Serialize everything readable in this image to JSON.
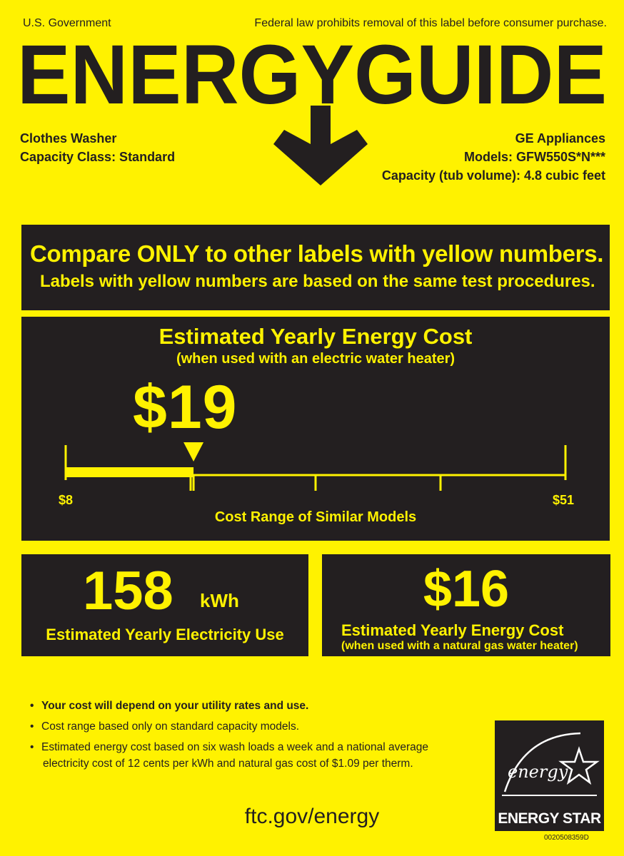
{
  "header": {
    "government": "U.S. Government",
    "federal_notice": "Federal law prohibits removal of this label before consumer purchase.",
    "brand_title": "ENERGYGUIDE"
  },
  "product": {
    "type": "Clothes Washer",
    "capacity_class": "Capacity Class: Standard",
    "manufacturer": "GE Appliances",
    "models": "Models: GFW550S*N***",
    "capacity": "Capacity (tub volume): 4.8 cubic feet"
  },
  "compare": {
    "main": "Compare ONLY to other labels with yellow numbers.",
    "sub": "Labels with yellow numbers are based on the same test procedures."
  },
  "electric_cost": {
    "title": "Estimated Yearly Energy Cost",
    "subtitle": "(when used with an electric water heater)",
    "value": "$19",
    "value_number": 19,
    "range_min_label": "$8",
    "range_max_label": "$51",
    "range_min": 8,
    "range_max": 51,
    "range_caption": "Cost Range of Similar Models"
  },
  "electricity_use": {
    "value": "158",
    "unit": "kWh",
    "label": "Estimated Yearly Electricity Use"
  },
  "gas_cost": {
    "value": "$16",
    "label": "Estimated Yearly Energy Cost",
    "subtitle": "(when used with a natural gas water heater)"
  },
  "notes": {
    "note1": "Your cost will depend on your utility rates and use.",
    "note2": "Cost range based only on standard capacity models.",
    "note3a": "Estimated energy cost based on six wash loads a week and a national average",
    "note3b": "electricity cost of 12 cents per kWh and natural gas cost of $1.09 per therm."
  },
  "footer": {
    "url": "ftc.gov/energy",
    "energy_star_logo_text": "energy",
    "energy_star_label": "ENERGY STAR",
    "serial": "0020508359D"
  },
  "colors": {
    "label_yellow": "#fff200",
    "label_black": "#231f20",
    "white": "#ffffff"
  }
}
